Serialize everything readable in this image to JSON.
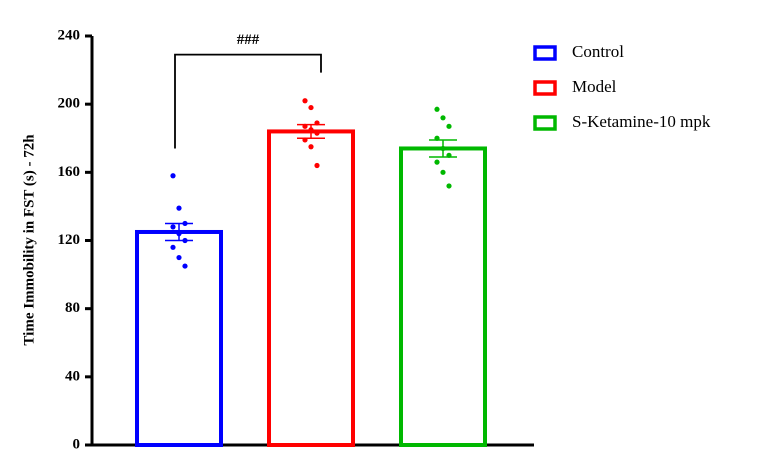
{
  "chart_data": {
    "type": "bar",
    "y_label": "Time Immobility in FST (s) - 72h",
    "annotation": "###",
    "ylim": [
      0,
      240
    ],
    "yticks": [
      0,
      40,
      80,
      120,
      160,
      200,
      240
    ],
    "series": [
      {
        "name": "Control",
        "color": "#0000ff",
        "value": 125,
        "error": 5,
        "points": [
          158,
          139,
          130,
          128,
          124,
          120,
          116,
          110,
          105
        ]
      },
      {
        "name": "Model",
        "color": "#ff0000",
        "value": 184,
        "error": 4,
        "points": [
          202,
          198,
          189,
          187,
          185,
          183,
          179,
          175,
          164
        ]
      },
      {
        "name": "S-Ketamine-10 mpk",
        "color": "#00b800",
        "value": 174,
        "error": 5,
        "points": [
          197,
          192,
          187,
          180,
          174,
          170,
          166,
          160,
          152
        ]
      }
    ]
  }
}
